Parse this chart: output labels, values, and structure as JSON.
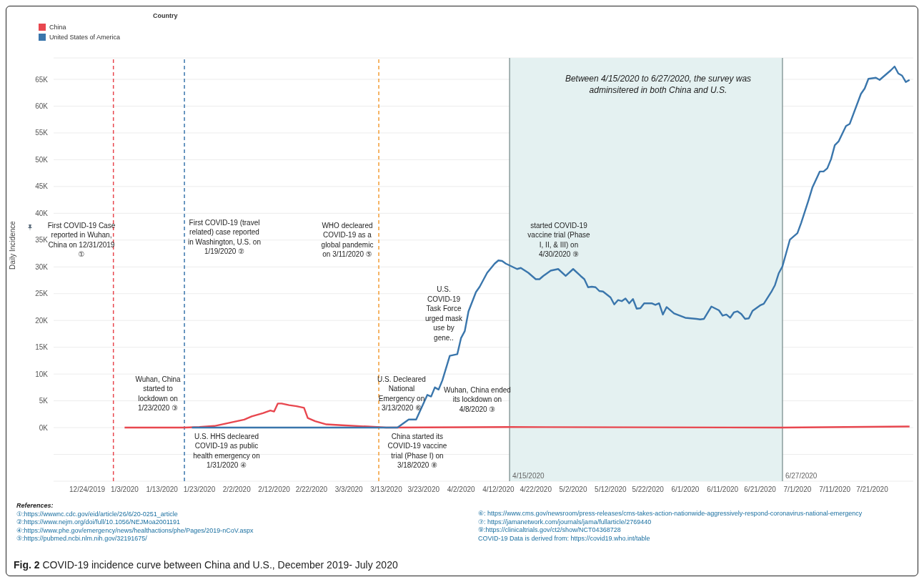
{
  "chart_data": {
    "type": "line",
    "title": "Fig. 2 COVID-19 incidence curve between China and U.S., December 2019- July 2020",
    "ylabel": "Daily Incidence",
    "legend_title": "Country",
    "legend": "top left",
    "grid": "y",
    "line_style": "solid",
    "marker": "none",
    "xlim": [
      "2019-12-15",
      "2020-08-01"
    ],
    "xticks": [
      {
        "value": "2019-12-24",
        "label": "12/24/2019"
      },
      {
        "value": "2020-01-03",
        "label": "1/3/2020"
      },
      {
        "value": "2020-01-13",
        "label": "1/13/2020"
      },
      {
        "value": "2020-01-23",
        "label": "1/23/2020"
      },
      {
        "value": "2020-02-02",
        "label": "2/2/2020"
      },
      {
        "value": "2020-02-12",
        "label": "2/12/2020"
      },
      {
        "value": "2020-02-22",
        "label": "2/22/2020"
      },
      {
        "value": "2020-03-03",
        "label": "3/3/2020"
      },
      {
        "value": "2020-03-13",
        "label": "3/13/2020"
      },
      {
        "value": "2020-03-23",
        "label": "3/23/2020"
      },
      {
        "value": "2020-04-02",
        "label": "4/2/2020"
      },
      {
        "value": "2020-04-12",
        "label": "4/12/2020"
      },
      {
        "value": "2020-04-22",
        "label": "4/22/2020"
      },
      {
        "value": "2020-05-02",
        "label": "5/2/2020"
      },
      {
        "value": "2020-05-12",
        "label": "5/12/2020"
      },
      {
        "value": "2020-05-22",
        "label": "5/22/2020"
      },
      {
        "value": "2020-06-01",
        "label": "6/1/2020"
      },
      {
        "value": "2020-06-11",
        "label": "6/11/2020"
      },
      {
        "value": "2020-06-21",
        "label": "6/21/2020"
      },
      {
        "value": "2020-07-01",
        "label": "7/1/2020"
      },
      {
        "value": "2020-07-11",
        "label": "7/11/2020"
      },
      {
        "value": "2020-07-21",
        "label": "7/21/2020"
      }
    ],
    "ylim": [
      -10000,
      69000
    ],
    "yticks": [
      {
        "value": -5000,
        "label": null
      },
      {
        "value": 0,
        "label": "0K"
      },
      {
        "value": 5000,
        "label": "5K"
      },
      {
        "value": 10000,
        "label": "10K"
      },
      {
        "value": 15000,
        "label": "15K"
      },
      {
        "value": 20000,
        "label": "20K"
      },
      {
        "value": 25000,
        "label": "25K"
      },
      {
        "value": 30000,
        "label": "30K"
      },
      {
        "value": 35000,
        "label": "35K"
      },
      {
        "value": 40000,
        "label": "40K"
      },
      {
        "value": 45000,
        "label": "45K"
      },
      {
        "value": 50000,
        "label": "50K"
      },
      {
        "value": 55000,
        "label": "55K"
      },
      {
        "value": 60000,
        "label": "60K"
      },
      {
        "value": 65000,
        "label": "65K"
      }
    ],
    "series": [
      {
        "name": "China",
        "color": "#e8474f",
        "x": [
          "2020-01-03",
          "2020-01-19",
          "2020-01-23",
          "2020-01-27",
          "2020-01-31",
          "2020-02-04",
          "2020-02-06",
          "2020-02-09",
          "2020-02-11",
          "2020-02-12",
          "2020-02-13",
          "2020-02-14",
          "2020-02-16",
          "2020-02-18",
          "2020-02-20",
          "2020-02-21",
          "2020-02-23",
          "2020-02-26",
          "2020-03-02",
          "2020-03-08",
          "2020-03-13",
          "2020-04-15",
          "2020-06-27",
          "2020-07-31"
        ],
        "values": [
          0,
          0,
          100,
          300,
          900,
          1500,
          2100,
          2700,
          3200,
          3000,
          4500,
          4500,
          4200,
          4000,
          3700,
          1800,
          1200,
          600,
          400,
          200,
          0,
          100,
          0,
          200
        ]
      },
      {
        "name": "United States of America",
        "color": "#3a76ac",
        "x": [
          "2020-01-21",
          "2020-03-01",
          "2020-03-16",
          "2020-03-19",
          "2020-03-21",
          "2020-03-24",
          "2020-03-25",
          "2020-03-26",
          "2020-03-27",
          "2020-03-28",
          "2020-03-30",
          "2020-04-01",
          "2020-04-02",
          "2020-04-03",
          "2020-04-04",
          "2020-04-06",
          "2020-04-07",
          "2020-04-09",
          "2020-04-11",
          "2020-04-12",
          "2020-04-13",
          "2020-04-14",
          "2020-04-17",
          "2020-04-18",
          "2020-04-20",
          "2020-04-22",
          "2020-04-23",
          "2020-04-24",
          "2020-04-26",
          "2020-04-28",
          "2020-04-30",
          "2020-05-02",
          "2020-05-04",
          "2020-05-05",
          "2020-05-06",
          "2020-05-07",
          "2020-05-08",
          "2020-05-09",
          "2020-05-10",
          "2020-05-12",
          "2020-05-13",
          "2020-05-14",
          "2020-05-15",
          "2020-05-16",
          "2020-05-17",
          "2020-05-18",
          "2020-05-19",
          "2020-05-20",
          "2020-05-21",
          "2020-05-23",
          "2020-05-24",
          "2020-05-25",
          "2020-05-26",
          "2020-05-27",
          "2020-05-29",
          "2020-06-01",
          "2020-06-04",
          "2020-06-05",
          "2020-06-06",
          "2020-06-08",
          "2020-06-10",
          "2020-06-11",
          "2020-06-12",
          "2020-06-13",
          "2020-06-14",
          "2020-06-15",
          "2020-06-16",
          "2020-06-17",
          "2020-06-18",
          "2020-06-19",
          "2020-06-21",
          "2020-06-22",
          "2020-06-24",
          "2020-06-25",
          "2020-06-26",
          "2020-06-27",
          "2020-06-29",
          "2020-07-01",
          "2020-07-02",
          "2020-07-04",
          "2020-07-05",
          "2020-07-07",
          "2020-07-08",
          "2020-07-09",
          "2020-07-10",
          "2020-07-11",
          "2020-07-12",
          "2020-07-14",
          "2020-07-15",
          "2020-07-18",
          "2020-07-19",
          "2020-07-20",
          "2020-07-22",
          "2020-07-23",
          "2020-07-24",
          "2020-07-26",
          "2020-07-27",
          "2020-07-28",
          "2020-07-29",
          "2020-07-30",
          "2020-07-31"
        ],
        "values": [
          0,
          0,
          0,
          1500,
          1500,
          6100,
          5800,
          7500,
          7100,
          8800,
          13400,
          13700,
          16700,
          18000,
          21700,
          25300,
          26300,
          28900,
          30600,
          31200,
          31100,
          30600,
          29600,
          29800,
          28900,
          27700,
          27700,
          28300,
          29300,
          29600,
          28300,
          29600,
          28300,
          27700,
          26200,
          26300,
          26200,
          25500,
          25400,
          24300,
          23000,
          23800,
          23600,
          24100,
          23200,
          24000,
          22200,
          22300,
          23200,
          23200,
          22900,
          23200,
          21100,
          22500,
          21300,
          20500,
          20300,
          20200,
          20300,
          22600,
          21900,
          20900,
          21100,
          20500,
          21500,
          21700,
          21200,
          20300,
          20400,
          21800,
          22800,
          23100,
          25300,
          26600,
          28800,
          30100,
          35100,
          36300,
          38200,
          42500,
          44800,
          47800,
          47800,
          48400,
          50100,
          52700,
          53400,
          56300,
          56700,
          62300,
          63300,
          65100,
          65300,
          64900,
          65500,
          66700,
          67400,
          66100,
          65700,
          64500,
          64900
        ]
      }
    ],
    "ref_lines": [
      {
        "axis": "x",
        "value": "2019-12-31",
        "color": "#e8474f",
        "line_style": "dashed"
      },
      {
        "axis": "x",
        "value": "2020-01-19",
        "color": "#3a76ac",
        "line_style": "dashed"
      },
      {
        "axis": "x",
        "value": "2020-03-11",
        "color": "#f39c34",
        "line_style": "dashed"
      },
      {
        "axis": "x",
        "value": "2020-04-15",
        "label": "4/15/2020",
        "color": "#8a9c9c",
        "line_style": "solid"
      },
      {
        "axis": "x",
        "value": "2020-06-27",
        "label": "6/27/2020",
        "color": "#8a9c9c",
        "line_style": "solid"
      }
    ],
    "bands": [
      {
        "axis": "x",
        "from": "2020-04-15",
        "to": "2020-06-27",
        "color": "#e4f1f1"
      }
    ],
    "annotations": [
      "First COVID-19 Case reported in Wuhan, China on 12/31/2019 ①",
      "First COVID-19 (travel related) case reported in Washington, U.S. on 1/19/2020 ②",
      "WHO decleared COVID-19 as a global pandemic on 3/11/2020 ⑤",
      "Wuhan, China started to lockdown on 1/23/2020 ③",
      "U.S. HHS decleared COVID-19 as public health emergency on 1/31/2020 ④",
      "U.S. Decleared National Emergency on 3/13/2020 ⑥",
      "Wuhan, China ended its lockdown on 4/8/2020 ③",
      "China started its COVID-19 vaccine trial (Phase I) on 3/18/2020 ⑧",
      "U.S. COVID-19 Task Force urged mask use by gene..",
      "started COVID-19 vaccine trial (Phase I, II, & III) on 4/30/2020 ⑨",
      "Between 4/15/2020 to 6/27/2020, the survey was adminsitered in both China and U.S.",
      "References:",
      "①:https://wwwnc.cdc.gov/eid/article/26/6/20-0251_article",
      "②:https://www.nejm.org/doi/full/10.1056/NEJMoa2001191",
      "④:https://www.phe.gov/emergency/news/healthactions/phe/Pages/2019-nCoV.aspx",
      "⑤:https://pubmed.ncbi.nlm.nih.gov/32191675/",
      "⑥: https://www.cms.gov/newsroom/press-releases/cms-takes-action-nationwide-aggressively-respond-coronavirus-national-emergency",
      "⑦: https://jamanetwork.com/journals/jama/fullarticle/2769440",
      "⑨:https://clinicaltrials.gov/ct2/show/NCT04368728",
      "COVID-19 Data is derived from: https://covid19.who.int/table"
    ]
  }
}
